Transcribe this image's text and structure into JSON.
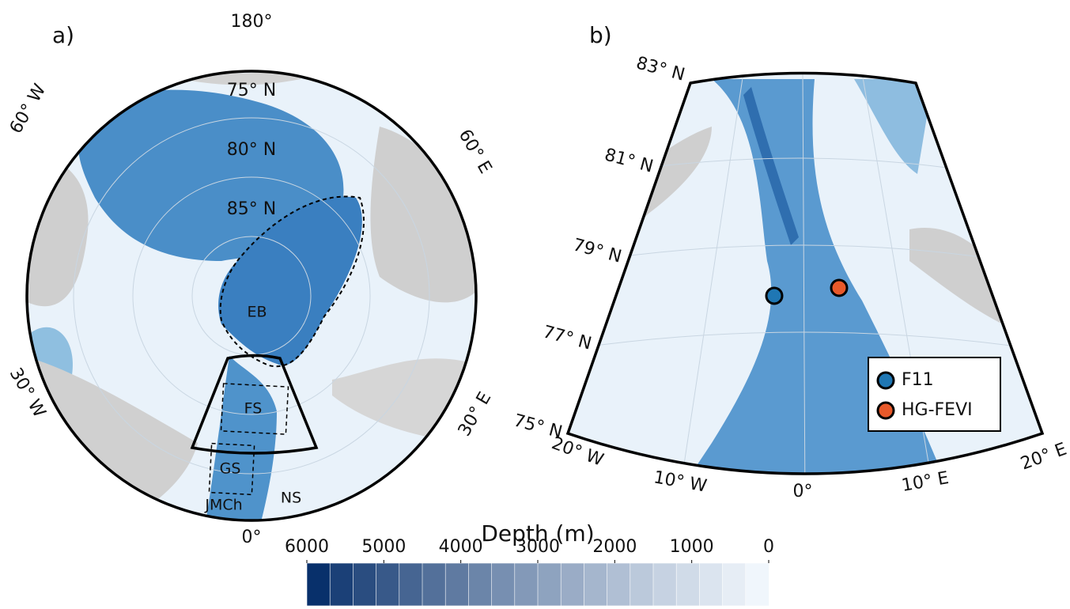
{
  "panel_a": {
    "label": "a)",
    "lon_labels": [
      "180°",
      "0°",
      "60° W",
      "60° E",
      "30° W",
      "30° E"
    ],
    "lat_labels": [
      "75° N",
      "80° N",
      "85° N"
    ],
    "regions": [
      "EB",
      "FS",
      "GS",
      "JMCh",
      "NS"
    ]
  },
  "panel_b": {
    "label": "b)",
    "lat_labels": [
      "83° N",
      "81° N",
      "79° N",
      "77° N",
      "75° N"
    ],
    "lon_labels": [
      "20° W",
      "10° W",
      "0°",
      "10° E",
      "20° E"
    ],
    "legend": [
      "F11",
      "HG-FEVI"
    ]
  },
  "colorbar": {
    "label": "Depth (m)",
    "lim": [
      6000,
      0
    ],
    "ticks": [
      6000,
      5000,
      4000,
      3000,
      2000,
      1000,
      0
    ]
  }
}
